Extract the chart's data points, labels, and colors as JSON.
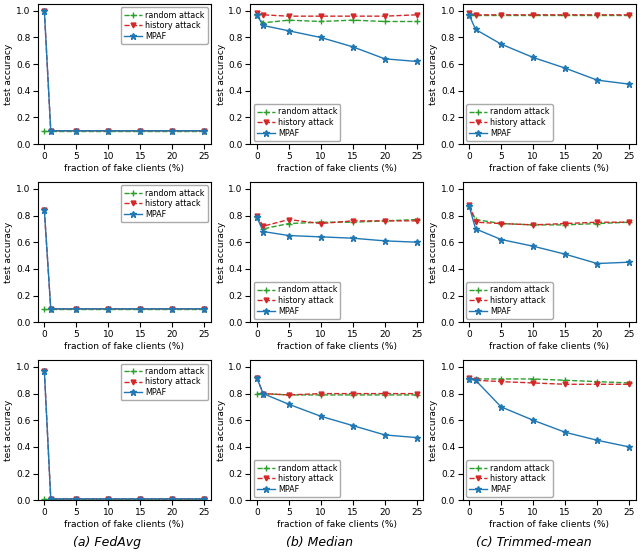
{
  "x": [
    0,
    1,
    5,
    10,
    15,
    20,
    25
  ],
  "subplots": {
    "row0_col0": {
      "random": [
        0.1,
        0.1,
        0.1,
        0.1,
        0.1,
        0.1,
        0.1
      ],
      "history": [
        1.0,
        0.1,
        0.1,
        0.1,
        0.1,
        0.1,
        0.1
      ],
      "mpaf": [
        1.0,
        0.1,
        0.1,
        0.1,
        0.1,
        0.1,
        0.1
      ],
      "legend_loc": "upper right"
    },
    "row0_col1": {
      "random": [
        0.97,
        0.91,
        0.93,
        0.92,
        0.93,
        0.92,
        0.92
      ],
      "history": [
        0.98,
        0.97,
        0.96,
        0.96,
        0.96,
        0.96,
        0.97
      ],
      "mpaf": [
        0.97,
        0.89,
        0.85,
        0.8,
        0.73,
        0.64,
        0.62
      ],
      "legend_loc": "lower left"
    },
    "row0_col2": {
      "random": [
        0.97,
        0.97,
        0.97,
        0.97,
        0.97,
        0.97,
        0.97
      ],
      "history": [
        0.98,
        0.97,
        0.97,
        0.97,
        0.97,
        0.97,
        0.97
      ],
      "mpaf": [
        0.97,
        0.86,
        0.75,
        0.65,
        0.57,
        0.48,
        0.45
      ],
      "legend_loc": "lower left"
    },
    "row1_col0": {
      "random": [
        0.1,
        0.1,
        0.1,
        0.1,
        0.1,
        0.1,
        0.1
      ],
      "history": [
        0.84,
        0.1,
        0.1,
        0.1,
        0.1,
        0.1,
        0.1
      ],
      "mpaf": [
        0.84,
        0.1,
        0.1,
        0.1,
        0.1,
        0.1,
        0.1
      ],
      "legend_loc": "upper right"
    },
    "row1_col1": {
      "random": [
        0.79,
        0.7,
        0.74,
        0.75,
        0.75,
        0.76,
        0.77
      ],
      "history": [
        0.8,
        0.72,
        0.77,
        0.74,
        0.76,
        0.76,
        0.76
      ],
      "mpaf": [
        0.79,
        0.68,
        0.65,
        0.64,
        0.63,
        0.61,
        0.6
      ],
      "legend_loc": "lower left"
    },
    "row1_col2": {
      "random": [
        0.87,
        0.77,
        0.74,
        0.73,
        0.73,
        0.74,
        0.75
      ],
      "history": [
        0.88,
        0.75,
        0.74,
        0.73,
        0.74,
        0.75,
        0.75
      ],
      "mpaf": [
        0.87,
        0.7,
        0.62,
        0.57,
        0.51,
        0.44,
        0.45
      ],
      "legend_loc": "lower left"
    },
    "row2_col0": {
      "random": [
        0.01,
        0.01,
        0.01,
        0.01,
        0.01,
        0.01,
        0.01
      ],
      "history": [
        0.97,
        0.01,
        0.01,
        0.01,
        0.01,
        0.01,
        0.01
      ],
      "mpaf": [
        0.97,
        0.01,
        0.01,
        0.01,
        0.01,
        0.01,
        0.01
      ],
      "legend_loc": "upper right"
    },
    "row2_col1": {
      "random": [
        0.8,
        0.8,
        0.79,
        0.79,
        0.79,
        0.79,
        0.79
      ],
      "history": [
        0.92,
        0.8,
        0.79,
        0.8,
        0.8,
        0.8,
        0.8
      ],
      "mpaf": [
        0.92,
        0.8,
        0.72,
        0.63,
        0.56,
        0.49,
        0.47
      ],
      "legend_loc": "lower left"
    },
    "row2_col2": {
      "random": [
        0.91,
        0.91,
        0.91,
        0.91,
        0.9,
        0.89,
        0.88
      ],
      "history": [
        0.92,
        0.9,
        0.89,
        0.88,
        0.87,
        0.87,
        0.87
      ],
      "mpaf": [
        0.91,
        0.9,
        0.7,
        0.6,
        0.51,
        0.45,
        0.4
      ],
      "legend_loc": "lower left"
    }
  },
  "col_labels": [
    "(a) FedAvg",
    "(b) Median",
    "(c) Trimmed-mean"
  ],
  "xlabel": "fraction of fake clients (%)",
  "ylabel": "test accuracy",
  "random_color": "#2ca02c",
  "history_color": "#d62728",
  "mpaf_color": "#1f77b4",
  "xticks": [
    0,
    5,
    10,
    15,
    20,
    25
  ],
  "yticks": [
    0.0,
    0.2,
    0.4,
    0.6,
    0.8,
    1.0
  ],
  "legend_labels": [
    "random attack",
    "history attack",
    "MPAF"
  ]
}
